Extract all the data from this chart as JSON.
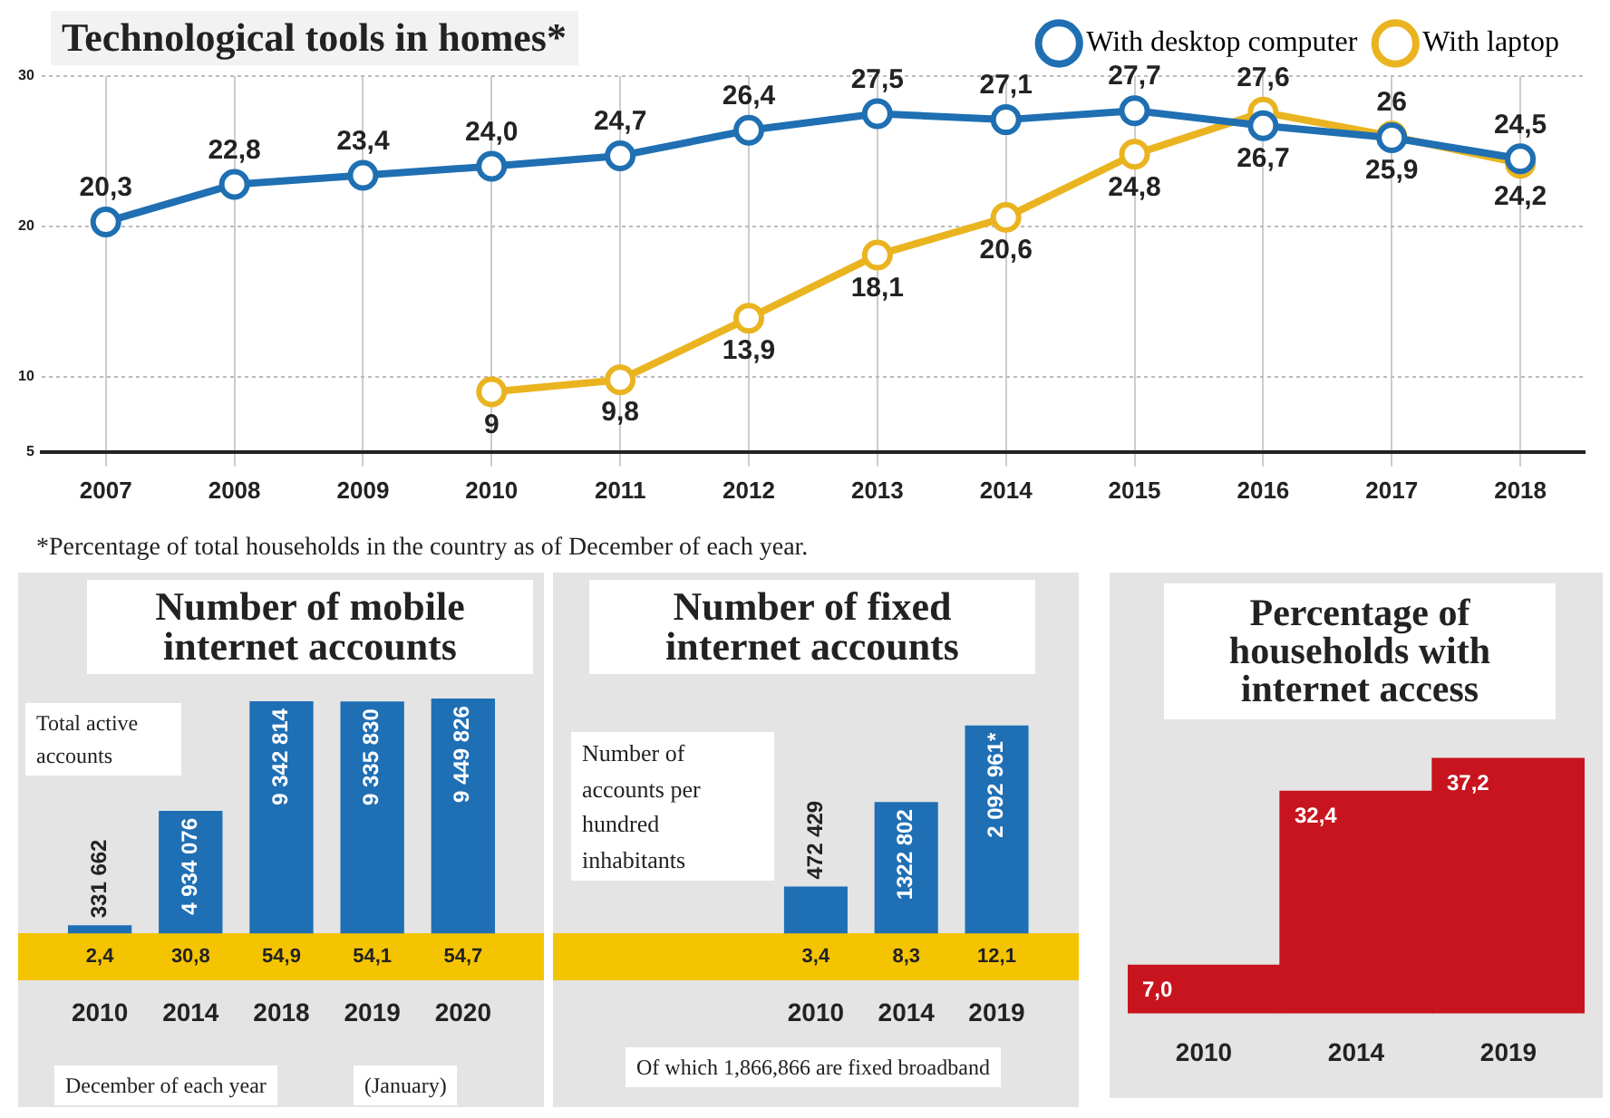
{
  "chart_data": [
    {
      "type": "line",
      "title": "Technological tools in homes*",
      "categories": [
        "2007",
        "2008",
        "2009",
        "2010",
        "2011",
        "2012",
        "2013",
        "2014",
        "2015",
        "2016",
        "2017",
        "2018"
      ],
      "series": [
        {
          "name": "With desktop computer",
          "color": "#1f6fb2",
          "values": [
            20.3,
            22.8,
            23.4,
            24.0,
            24.7,
            26.4,
            27.5,
            27.1,
            27.7,
            26.7,
            25.9,
            24.5
          ],
          "value_labels": [
            "20,3",
            "22,8",
            "23,4",
            "24,0",
            "24,7",
            "26,4",
            "27,5",
            "27,1",
            "27,7",
            "26,7",
            "25,9",
            "24,5"
          ]
        },
        {
          "name": "With laptop",
          "color": "#eab420",
          "values": [
            null,
            null,
            null,
            9,
            9.8,
            13.9,
            18.1,
            20.6,
            24.8,
            27.6,
            26,
            24.2
          ],
          "value_labels": [
            null,
            null,
            null,
            "9",
            "9,8",
            "13,9",
            "18,1",
            "20,6",
            "24,8",
            "27,6",
            "26",
            "24,2"
          ]
        }
      ],
      "ylim": [
        5,
        30
      ],
      "yticks": [
        5,
        10,
        20,
        30
      ],
      "grid": true,
      "legend": "top right",
      "marker": "circle",
      "annotations": [
        "*Percentage of total households in the country as of December of each year."
      ]
    },
    {
      "type": "bar",
      "title": "Number of mobile internet accounts",
      "categories": [
        "2010",
        "2014",
        "2018",
        "2019",
        "2020"
      ],
      "values": [
        331662,
        4934076,
        9342814,
        9335830,
        9449826
      ],
      "color": "#1f6fb5",
      "value_labels": [
        "331 662",
        "4 934 076",
        "9 342 814",
        "9 335 830",
        "9 449 826"
      ],
      "tick_labels": "x",
      "annotations": [
        "2,4",
        "30,8",
        "54,9",
        "54,1",
        "54,7",
        "Total active accounts",
        "December of each year",
        "(January)"
      ]
    },
    {
      "type": "bar",
      "title": "Number of fixed internet accounts",
      "categories": [
        "2010",
        "2014",
        "2019"
      ],
      "values": [
        472429,
        1322802,
        2092961
      ],
      "color": "#1f6fb5",
      "value_labels": [
        "472 429",
        "1322 802",
        "2 092 961*"
      ],
      "tick_labels": "x",
      "annotations": [
        "3,4",
        "8,3",
        "12,1",
        "Number of accounts per hundred inhabitants",
        "Of which 1,866,866 are fixed broadband"
      ]
    },
    {
      "type": "bar",
      "title": "Percentage of households with internet access",
      "categories": [
        "2010",
        "2014",
        "2019"
      ],
      "values": [
        7.0,
        32.4,
        37.2
      ],
      "color": "#c8141e",
      "value_labels": [
        "7,0",
        "32,4",
        "37,2"
      ],
      "tick_labels": "x"
    }
  ]
}
